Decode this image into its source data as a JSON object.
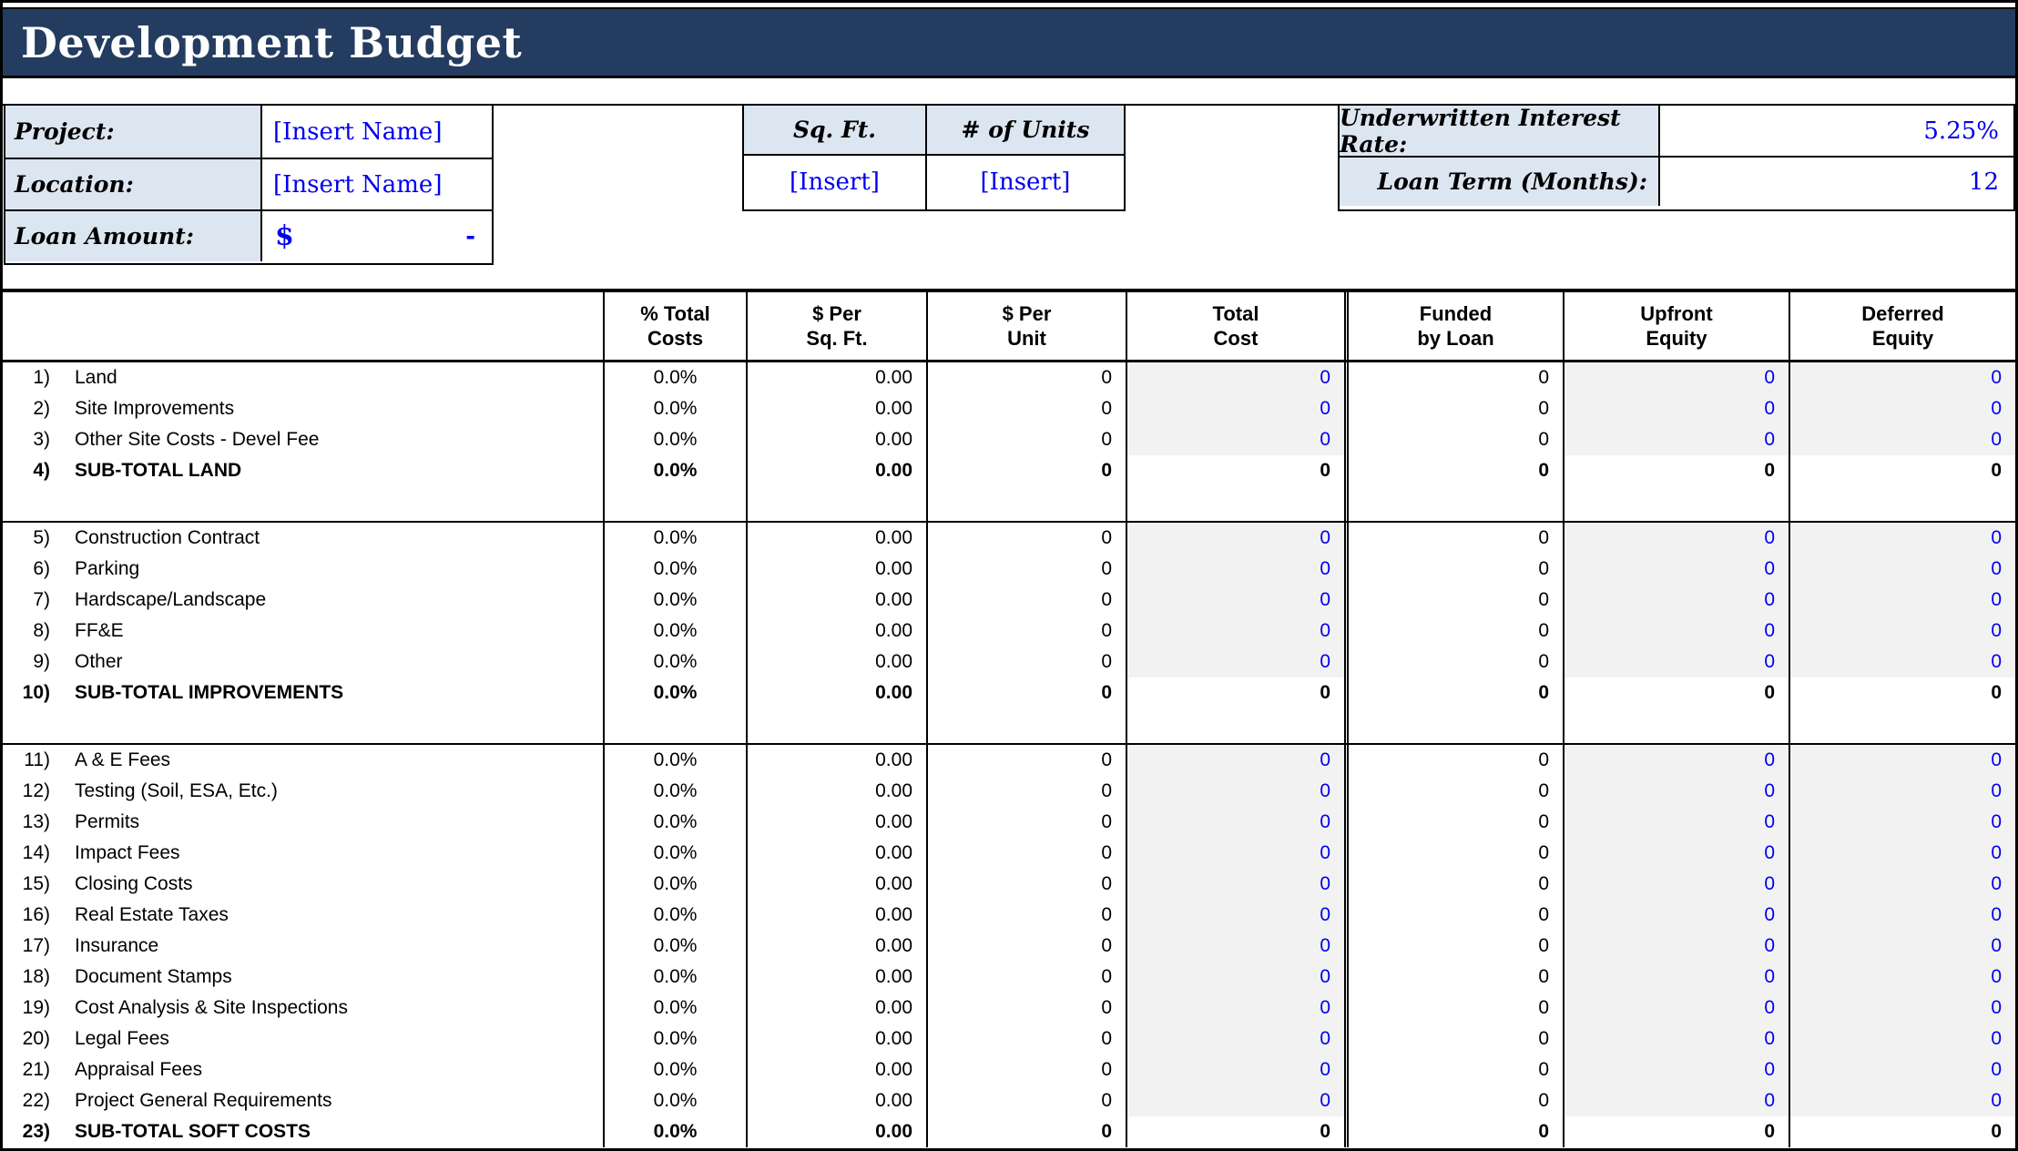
{
  "title": "Development Budget",
  "colors": {
    "title_bar_bg": "#243C60",
    "label_bg": "#DCE6F1",
    "shaded_cell_bg": "#F2F2F2",
    "input_text_blue": "#0000EE",
    "border": "#000000"
  },
  "info": {
    "project": {
      "label": "Project:",
      "value": "[Insert Name]"
    },
    "location": {
      "label": "Location:",
      "value": "[Insert Name]"
    },
    "loan_amount": {
      "label": "Loan Amount:",
      "currency": "$",
      "value": "-"
    }
  },
  "metrics": {
    "sq_ft": {
      "label": "Sq. Ft.",
      "value": "[Insert]"
    },
    "units": {
      "label": "# of Units",
      "value": "[Insert]"
    }
  },
  "terms": {
    "interest_rate": {
      "label": "Underwritten Interest Rate:",
      "value": "5.25%"
    },
    "loan_term": {
      "label": "Loan Term (Months):",
      "value": "12"
    }
  },
  "budget": {
    "columns": [
      {
        "l1": "% Total",
        "l2": "Costs"
      },
      {
        "l1": "$ Per",
        "l2": "Sq. Ft."
      },
      {
        "l1": "$ Per",
        "l2": "Unit"
      },
      {
        "l1": "Total",
        "l2": "Cost"
      },
      {
        "l1": "Funded",
        "l2": "by Loan"
      },
      {
        "l1": "Upfront",
        "l2": "Equity"
      },
      {
        "l1": "Deferred",
        "l2": "Equity"
      }
    ],
    "sections": [
      {
        "spacer_after": true,
        "rows": [
          {
            "num": "1)",
            "label": "Land",
            "subtotal": false,
            "values": [
              "0.0%",
              "0.00",
              "0",
              "0",
              "0",
              "0",
              "0"
            ]
          },
          {
            "num": "2)",
            "label": "Site Improvements",
            "subtotal": false,
            "values": [
              "0.0%",
              "0.00",
              "0",
              "0",
              "0",
              "0",
              "0"
            ]
          },
          {
            "num": "3)",
            "label": "Other Site Costs - Devel Fee",
            "subtotal": false,
            "values": [
              "0.0%",
              "0.00",
              "0",
              "0",
              "0",
              "0",
              "0"
            ]
          },
          {
            "num": "4)",
            "label": "SUB-TOTAL LAND",
            "subtotal": true,
            "values": [
              "0.0%",
              "0.00",
              "0",
              "0",
              "0",
              "0",
              "0"
            ]
          }
        ]
      },
      {
        "spacer_after": true,
        "rows": [
          {
            "num": "5)",
            "label": "Construction Contract",
            "subtotal": false,
            "values": [
              "0.0%",
              "0.00",
              "0",
              "0",
              "0",
              "0",
              "0"
            ]
          },
          {
            "num": "6)",
            "label": "Parking",
            "subtotal": false,
            "values": [
              "0.0%",
              "0.00",
              "0",
              "0",
              "0",
              "0",
              "0"
            ]
          },
          {
            "num": "7)",
            "label": "Hardscape/Landscape",
            "subtotal": false,
            "values": [
              "0.0%",
              "0.00",
              "0",
              "0",
              "0",
              "0",
              "0"
            ]
          },
          {
            "num": "8)",
            "label": "FF&E",
            "subtotal": false,
            "values": [
              "0.0%",
              "0.00",
              "0",
              "0",
              "0",
              "0",
              "0"
            ]
          },
          {
            "num": "9)",
            "label": "Other",
            "subtotal": false,
            "values": [
              "0.0%",
              "0.00",
              "0",
              "0",
              "0",
              "0",
              "0"
            ]
          },
          {
            "num": "10)",
            "label": "SUB-TOTAL IMPROVEMENTS",
            "subtotal": true,
            "values": [
              "0.0%",
              "0.00",
              "0",
              "0",
              "0",
              "0",
              "0"
            ]
          }
        ]
      },
      {
        "spacer_after": false,
        "rows": [
          {
            "num": "11)",
            "label": "A & E Fees",
            "subtotal": false,
            "values": [
              "0.0%",
              "0.00",
              "0",
              "0",
              "0",
              "0",
              "0"
            ]
          },
          {
            "num": "12)",
            "label": "Testing (Soil, ESA, Etc.)",
            "subtotal": false,
            "values": [
              "0.0%",
              "0.00",
              "0",
              "0",
              "0",
              "0",
              "0"
            ]
          },
          {
            "num": "13)",
            "label": "Permits",
            "subtotal": false,
            "values": [
              "0.0%",
              "0.00",
              "0",
              "0",
              "0",
              "0",
              "0"
            ]
          },
          {
            "num": "14)",
            "label": "Impact Fees",
            "subtotal": false,
            "values": [
              "0.0%",
              "0.00",
              "0",
              "0",
              "0",
              "0",
              "0"
            ]
          },
          {
            "num": "15)",
            "label": "Closing Costs",
            "subtotal": false,
            "values": [
              "0.0%",
              "0.00",
              "0",
              "0",
              "0",
              "0",
              "0"
            ]
          },
          {
            "num": "16)",
            "label": "Real Estate Taxes",
            "subtotal": false,
            "values": [
              "0.0%",
              "0.00",
              "0",
              "0",
              "0",
              "0",
              "0"
            ]
          },
          {
            "num": "17)",
            "label": "Insurance",
            "subtotal": false,
            "values": [
              "0.0%",
              "0.00",
              "0",
              "0",
              "0",
              "0",
              "0"
            ]
          },
          {
            "num": "18)",
            "label": "Document Stamps",
            "subtotal": false,
            "values": [
              "0.0%",
              "0.00",
              "0",
              "0",
              "0",
              "0",
              "0"
            ]
          },
          {
            "num": "19)",
            "label": "Cost Analysis & Site Inspections",
            "subtotal": false,
            "values": [
              "0.0%",
              "0.00",
              "0",
              "0",
              "0",
              "0",
              "0"
            ]
          },
          {
            "num": "20)",
            "label": "Legal Fees",
            "subtotal": false,
            "values": [
              "0.0%",
              "0.00",
              "0",
              "0",
              "0",
              "0",
              "0"
            ]
          },
          {
            "num": "21)",
            "label": "Appraisal Fees",
            "subtotal": false,
            "values": [
              "0.0%",
              "0.00",
              "0",
              "0",
              "0",
              "0",
              "0"
            ]
          },
          {
            "num": "22)",
            "label": "Project General Requirements",
            "subtotal": false,
            "values": [
              "0.0%",
              "0.00",
              "0",
              "0",
              "0",
              "0",
              "0"
            ]
          },
          {
            "num": "23)",
            "label": "SUB-TOTAL SOFT COSTS",
            "subtotal": true,
            "values": [
              "0.0%",
              "0.00",
              "0",
              "0",
              "0",
              "0",
              "0"
            ]
          }
        ]
      }
    ]
  }
}
